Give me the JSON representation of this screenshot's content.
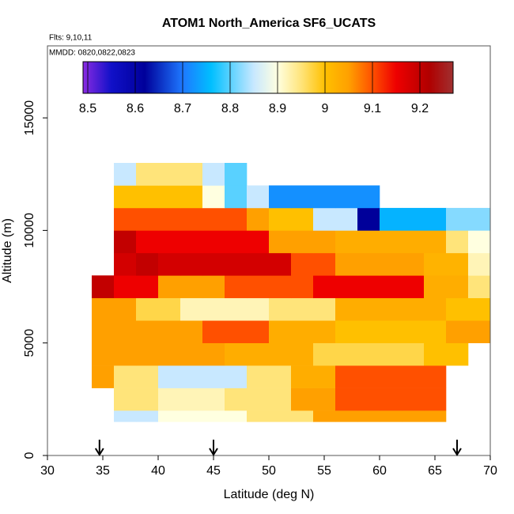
{
  "chart_data": {
    "type": "heatmap",
    "title": "ATOM1 North_America SF6_UCATS",
    "annotations": [
      "Flts: 9,10,11",
      "MMDD: 0820,0822,0823"
    ],
    "xlabel": "Latitude (deg N)",
    "ylabel": "Altitude (m)",
    "xlim": [
      30,
      70
    ],
    "xticks": [
      30,
      35,
      40,
      45,
      50,
      55,
      60,
      65,
      70
    ],
    "ylim": [
      0,
      18200
    ],
    "yticks": [
      0,
      5000,
      10000,
      15000
    ],
    "x_bins": [
      34,
      36,
      38,
      40,
      42,
      44,
      46,
      48,
      50,
      52,
      54,
      56,
      58,
      60,
      62,
      64,
      66,
      68,
      70
    ],
    "y_bins": [
      1500,
      2000,
      3000,
      4000,
      5000,
      6000,
      7000,
      8000,
      9000,
      10000,
      11000,
      12000,
      13000
    ],
    "z": [
      [
        null,
        8.85,
        8.85,
        8.9,
        8.9,
        8.9,
        8.9,
        8.95,
        8.95,
        8.95,
        9.05,
        9.05,
        9.05,
        9.05,
        9.05,
        9.05,
        null,
        null
      ],
      [
        null,
        8.95,
        8.95,
        8.92,
        8.92,
        8.92,
        8.95,
        8.95,
        8.95,
        9.05,
        9.05,
        9.1,
        9.1,
        9.1,
        9.1,
        9.1,
        null,
        null
      ],
      [
        9.05,
        8.95,
        8.95,
        8.85,
        8.85,
        8.85,
        8.85,
        8.95,
        8.95,
        9.03,
        9.03,
        9.1,
        9.1,
        9.1,
        9.1,
        9.1,
        null,
        null
      ],
      [
        9.05,
        9.05,
        9.05,
        9.05,
        9.05,
        9.05,
        9.03,
        9.03,
        9.03,
        9.03,
        8.97,
        8.97,
        8.97,
        8.97,
        8.97,
        9.0,
        9.0,
        null
      ],
      [
        9.05,
        9.05,
        9.05,
        9.05,
        9.05,
        9.1,
        9.1,
        9.1,
        9.03,
        9.03,
        9.03,
        9.0,
        9.0,
        9.0,
        9.0,
        9.0,
        9.05,
        9.05
      ],
      [
        9.05,
        9.05,
        8.97,
        8.97,
        8.92,
        8.92,
        8.92,
        8.92,
        8.95,
        8.95,
        8.95,
        9.03,
        9.03,
        9.03,
        9.03,
        9.03,
        9.0,
        9.0
      ],
      [
        9.2,
        9.15,
        9.15,
        9.05,
        9.05,
        9.05,
        9.1,
        9.1,
        9.1,
        9.1,
        9.15,
        9.15,
        9.15,
        9.15,
        9.15,
        9.03,
        9.03,
        8.95
      ],
      [
        null,
        9.18,
        9.2,
        9.18,
        9.18,
        9.18,
        9.18,
        9.18,
        9.18,
        9.1,
        9.1,
        9.05,
        9.05,
        9.05,
        9.05,
        9.02,
        9.02,
        8.92
      ],
      [
        null,
        9.2,
        9.15,
        9.15,
        9.15,
        9.15,
        9.15,
        9.15,
        9.05,
        9.05,
        9.05,
        9.03,
        9.03,
        9.03,
        9.03,
        9.03,
        8.95,
        8.9
      ],
      [
        null,
        9.1,
        9.1,
        9.1,
        9.1,
        9.1,
        9.1,
        9.05,
        9.0,
        9.0,
        8.85,
        8.85,
        8.62,
        8.75,
        8.75,
        8.75,
        8.82,
        8.82
      ],
      [
        null,
        9.0,
        9.0,
        9.0,
        9.0,
        8.9,
        8.8,
        8.85,
        8.72,
        8.72,
        8.72,
        8.72,
        8.72,
        null,
        null,
        null,
        null,
        null
      ],
      [
        null,
        8.85,
        8.95,
        8.95,
        8.95,
        8.85,
        8.8,
        null,
        null,
        null,
        null,
        null,
        null,
        null,
        null,
        null,
        null,
        null
      ]
    ],
    "colorbar_lim": [
      8.49,
      9.27
    ],
    "colorbar_ticks": [
      8.5,
      8.6,
      8.7,
      8.8,
      8.9,
      9.0,
      9.1,
      9.2
    ],
    "colorscale": [
      {
        "value": 8.49,
        "color": "#8a2be2"
      },
      {
        "value": 8.55,
        "color": "#1010c8"
      },
      {
        "value": 8.62,
        "color": "#00009a"
      },
      {
        "value": 8.7,
        "color": "#1e78ff"
      },
      {
        "value": 8.76,
        "color": "#00bfff"
      },
      {
        "value": 8.85,
        "color": "#c8e8ff"
      },
      {
        "value": 8.9,
        "color": "#ffffe0"
      },
      {
        "value": 8.95,
        "color": "#ffe47a"
      },
      {
        "value": 9.0,
        "color": "#ffc000"
      },
      {
        "value": 9.05,
        "color": "#ffa000"
      },
      {
        "value": 9.1,
        "color": "#ff5000"
      },
      {
        "value": 9.15,
        "color": "#ee0000"
      },
      {
        "value": 9.22,
        "color": "#b00000"
      },
      {
        "value": 9.27,
        "color": "#a03030"
      }
    ],
    "arrows": [
      34.7,
      45,
      67
    ]
  }
}
